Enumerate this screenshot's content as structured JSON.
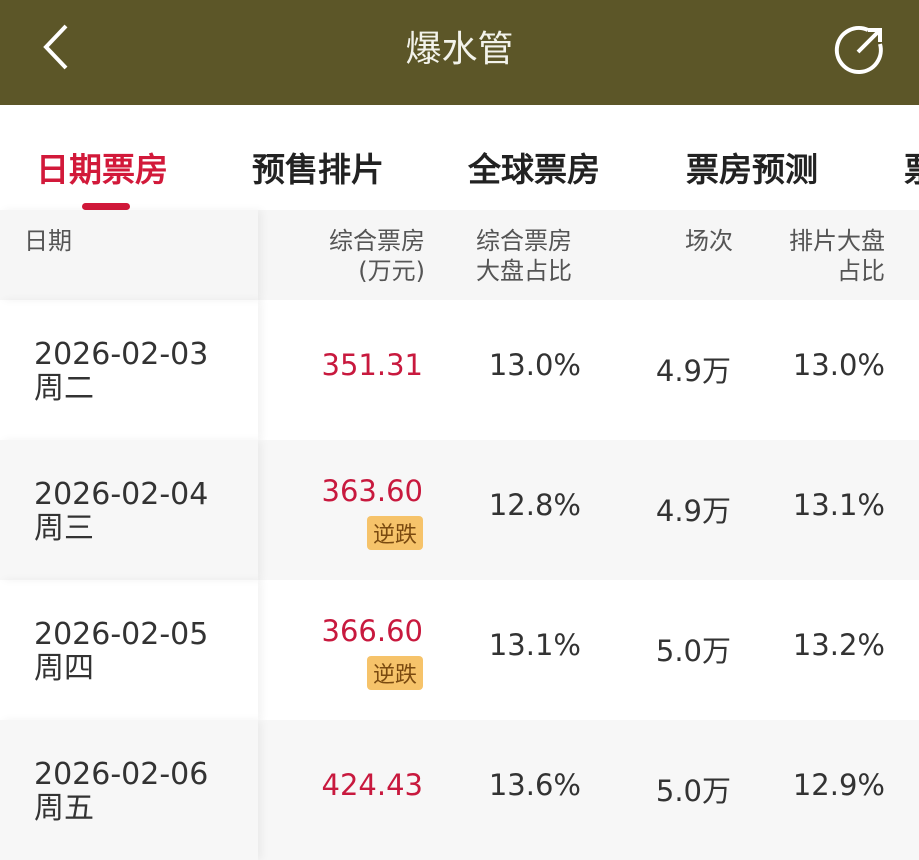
{
  "header": {
    "title": "爆水管",
    "back_icon": "chevron-left-icon",
    "share_icon": "share-icon",
    "color": "#5c5628"
  },
  "tabs": [
    {
      "label": "日期票房",
      "active": true
    },
    {
      "label": "预售排片"
    },
    {
      "label": "全球票房"
    },
    {
      "label": "票房预测"
    },
    {
      "label": "票"
    }
  ],
  "accent": "#d2193a",
  "table": {
    "headers": {
      "date": "日期",
      "box_office": "综合票房",
      "box_office_unit": "(万元)",
      "share": "综合票房",
      "share2": "大盘占比",
      "screenings": "场次",
      "schedule": "排片大盘",
      "schedule2": "占比"
    },
    "rows": [
      {
        "date": "2026-02-03",
        "weekday": "周二",
        "box_office": "351.31",
        "badge": null,
        "share": "13.0%",
        "screenings": "4.9万",
        "schedule": "13.0%"
      },
      {
        "date": "2026-02-04",
        "weekday": "周三",
        "box_office": "363.60",
        "badge": "逆跌",
        "share": "12.8%",
        "screenings": "4.9万",
        "schedule": "13.1%"
      },
      {
        "date": "2026-02-05",
        "weekday": "周四",
        "box_office": "366.60",
        "badge": "逆跌",
        "share": "13.1%",
        "screenings": "5.0万",
        "schedule": "13.2%"
      },
      {
        "date": "2026-02-06",
        "weekday": "周五",
        "box_office": "424.43",
        "badge": null,
        "share": "13.6%",
        "screenings": "5.0万",
        "schedule": "12.9%"
      }
    ]
  }
}
